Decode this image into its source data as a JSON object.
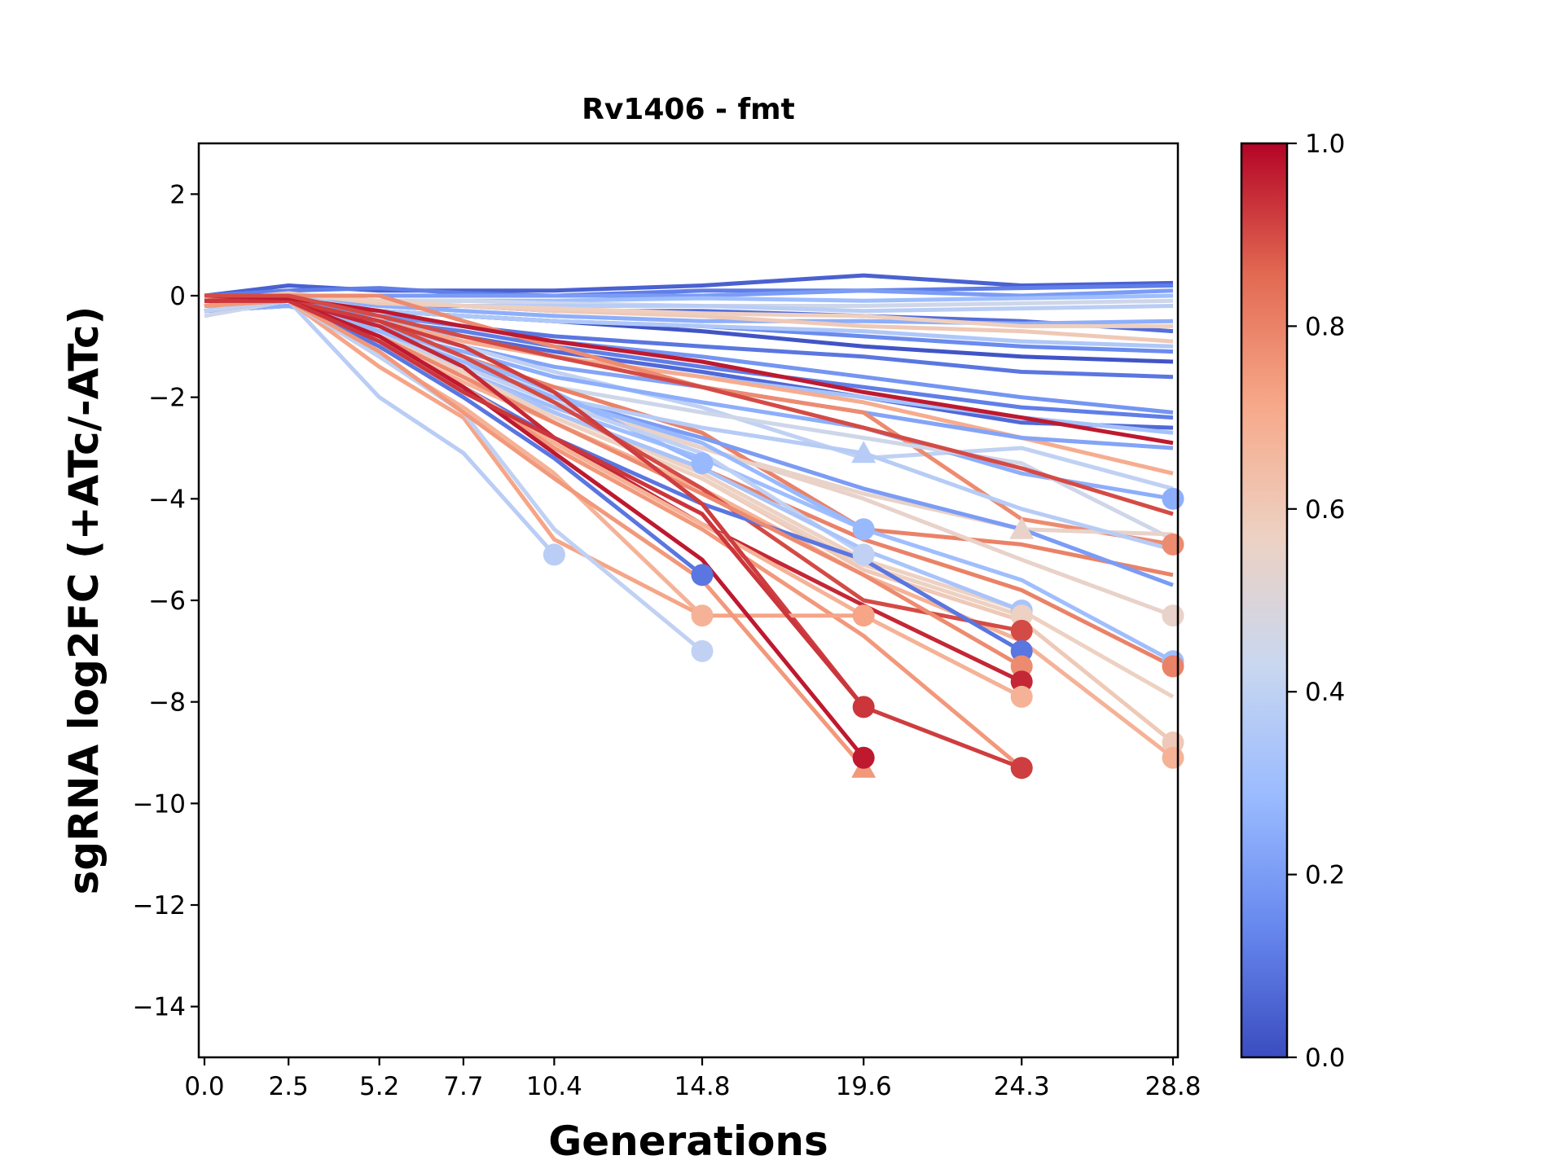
{
  "chart_data": {
    "type": "line",
    "title": "Rv1406 - fmt",
    "xlabel": "Generations",
    "ylabel": "sgRNA log2FC (+ATc/-ATc)",
    "x": [
      0.0,
      2.5,
      5.2,
      7.7,
      10.4,
      14.8,
      19.6,
      24.3,
      28.8
    ],
    "xtick_labels": [
      "0.0",
      "2.5",
      "5.2",
      "7.7",
      "10.4",
      "14.8",
      "19.6",
      "24.3",
      "28.8"
    ],
    "ylim": [
      -15,
      3
    ],
    "yticks": [
      2,
      0,
      -2,
      -4,
      -6,
      -8,
      -10,
      -12,
      -14
    ],
    "ytick_labels": [
      "2",
      "0",
      "−2",
      "−4",
      "−6",
      "−8",
      "−10",
      "−12",
      "−14"
    ],
    "grid": false,
    "colorbar": {
      "colormap": "coolwarm",
      "range": [
        0.0,
        1.0
      ],
      "tick_labels": [
        "0.0",
        "0.2",
        "0.4",
        "0.6",
        "0.8",
        "1.0"
      ],
      "stops": [
        "#3b4cc0",
        "#6788ee",
        "#9abbff",
        "#c9d7f0",
        "#edd1c2",
        "#f7a889",
        "#e26952",
        "#b40426"
      ]
    },
    "series": [
      {
        "c": 0.05,
        "values": [
          0.0,
          0.2,
          0.1,
          0.1,
          0.1,
          0.2,
          0.4,
          0.2,
          0.25
        ]
      },
      {
        "c": 0.12,
        "values": [
          0.0,
          0.1,
          0.15,
          0.05,
          0.0,
          0.1,
          0.1,
          0.15,
          0.2
        ]
      },
      {
        "c": 0.2,
        "values": [
          0.0,
          0.0,
          0.0,
          0.0,
          0.0,
          0.0,
          0.1,
          0.0,
          0.1
        ]
      },
      {
        "c": 0.3,
        "values": [
          -0.1,
          0.0,
          -0.1,
          -0.1,
          -0.1,
          -0.05,
          -0.1,
          -0.05,
          0.0
        ]
      },
      {
        "c": 0.45,
        "values": [
          -0.1,
          0.0,
          -0.1,
          -0.1,
          -0.15,
          -0.2,
          -0.2,
          -0.15,
          -0.1
        ]
      },
      {
        "c": 0.38,
        "values": [
          -0.2,
          0.0,
          -0.15,
          -0.2,
          -0.2,
          -0.2,
          -0.3,
          -0.25,
          -0.2
        ]
      },
      {
        "c": 0.08,
        "values": [
          -0.1,
          0.0,
          -0.2,
          -0.2,
          -0.3,
          -0.3,
          -0.4,
          -0.5,
          -0.7
        ]
      },
      {
        "c": 0.25,
        "values": [
          -0.2,
          0.0,
          -0.2,
          -0.3,
          -0.4,
          -0.5,
          -0.5,
          -0.55,
          -0.5
        ]
      },
      {
        "c": 0.6,
        "values": [
          -0.1,
          0.05,
          -0.15,
          -0.2,
          -0.3,
          -0.4,
          -0.6,
          -0.7,
          -0.9
        ]
      },
      {
        "c": 0.58,
        "values": [
          -0.1,
          0.0,
          -0.1,
          -0.2,
          -0.25,
          -0.35,
          -0.4,
          -0.6,
          -0.6
        ]
      },
      {
        "c": 0.02,
        "values": [
          -0.2,
          -0.1,
          -0.3,
          -0.4,
          -0.5,
          -0.7,
          -1.0,
          -1.2,
          -1.3
        ]
      },
      {
        "c": 0.15,
        "values": [
          -0.2,
          -0.1,
          -0.3,
          -0.4,
          -0.5,
          -0.6,
          -0.8,
          -1.0,
          -1.1
        ]
      },
      {
        "c": 0.35,
        "values": [
          -0.3,
          0.0,
          -0.3,
          -0.4,
          -0.5,
          -0.6,
          -0.7,
          -0.9,
          -1.0
        ]
      },
      {
        "c": 0.1,
        "values": [
          -0.3,
          -0.1,
          -0.4,
          -0.6,
          -0.8,
          -1.0,
          -1.2,
          -1.5,
          -1.6
        ]
      },
      {
        "c": 0.18,
        "values": [
          -0.2,
          -0.1,
          -0.4,
          -0.6,
          -0.9,
          -1.2,
          -1.6,
          -2.0,
          -2.3
        ]
      },
      {
        "c": 0.12,
        "values": [
          -0.3,
          -0.1,
          -0.5,
          -0.7,
          -1.0,
          -1.4,
          -1.8,
          -2.2,
          -2.4
        ]
      },
      {
        "c": 0.07,
        "values": [
          -0.3,
          -0.2,
          -0.5,
          -0.8,
          -1.1,
          -1.5,
          -2.0,
          -2.5,
          -2.6
        ]
      },
      {
        "c": 0.32,
        "values": [
          -0.2,
          -0.1,
          -0.5,
          -0.8,
          -1.2,
          -1.6,
          -2.0,
          -2.4,
          -2.7
        ]
      },
      {
        "c": 0.7,
        "values": [
          -0.2,
          -0.1,
          -0.5,
          -0.9,
          -1.2,
          -1.6,
          -2.1,
          -2.8,
          -3.5
        ]
      },
      {
        "c": 0.22,
        "values": [
          -0.3,
          -0.2,
          -0.6,
          -1.0,
          -1.4,
          -1.8,
          -2.3,
          -2.8,
          -3.0
        ]
      },
      {
        "c": 0.4,
        "values": [
          -0.3,
          -0.1,
          -0.6,
          -1.0,
          -1.5,
          -2.2,
          -3.2,
          -3.0,
          -3.8
        ]
      },
      {
        "c": 0.25,
        "values": [
          -0.3,
          -0.2,
          -0.7,
          -1.1,
          -1.6,
          -2.1,
          -2.6,
          -3.5,
          -4.0
        ],
        "marker": "o"
      },
      {
        "c": 0.78,
        "values": [
          -0.1,
          0.0,
          0.0,
          -0.5,
          -1.0,
          -1.8,
          -2.3,
          -4.4,
          -4.9
        ],
        "marker": "o"
      },
      {
        "c": 0.45,
        "values": [
          -0.4,
          -0.1,
          -0.8,
          -1.3,
          -1.8,
          -2.3,
          -2.8,
          -3.3,
          -4.8
        ]
      },
      {
        "c": 0.55,
        "values": [
          -0.3,
          -0.1,
          -0.8,
          -1.4,
          -2.0,
          -3.0,
          -3.9,
          -4.6,
          -4.7
        ],
        "marker_at": 7,
        "marker_shape": "^"
      },
      {
        "c": 0.8,
        "values": [
          -0.2,
          -0.1,
          -0.6,
          -1.2,
          -1.8,
          -2.7,
          -4.6,
          -4.9,
          -5.5
        ]
      },
      {
        "c": 0.2,
        "values": [
          -0.3,
          -0.1,
          -0.8,
          -1.4,
          -2.0,
          -2.8,
          -3.8,
          -4.6,
          -5.7
        ]
      },
      {
        "c": 0.37,
        "values": [
          -0.3,
          -0.1,
          -0.7,
          -1.3,
          -2.0,
          -2.6,
          -3.1,
          -4.2,
          -5.0
        ],
        "marker_at": 6,
        "marker_shape": "^"
      },
      {
        "c": 0.55,
        "values": [
          -0.3,
          -0.1,
          -0.8,
          -1.4,
          -2.1,
          -3.0,
          -4.0,
          -5.2,
          -6.3
        ],
        "marker": "o"
      },
      {
        "c": 0.3,
        "values": [
          -0.3,
          -0.1,
          -0.8,
          -1.5,
          -2.2,
          -3.2,
          -4.6,
          -5.6,
          -7.2
        ],
        "marker": "o"
      },
      {
        "c": 0.8,
        "values": [
          -0.3,
          -0.1,
          -0.8,
          -1.5,
          -2.3,
          -3.4,
          -4.8,
          -5.8,
          -7.3
        ],
        "marker": "o"
      },
      {
        "c": 0.57,
        "values": [
          -0.3,
          -0.1,
          -0.8,
          -1.5,
          -2.3,
          -3.5,
          -5.2,
          -6.2,
          -7.9
        ]
      },
      {
        "c": 0.6,
        "values": [
          -0.2,
          -0.1,
          -0.8,
          -1.6,
          -2.4,
          -3.6,
          -5.4,
          -6.4,
          -8.8
        ],
        "marker": "o"
      },
      {
        "c": 0.68,
        "values": [
          -0.2,
          -0.1,
          -0.9,
          -1.7,
          -2.5,
          -3.8,
          -5.5,
          -6.8,
          -9.1
        ],
        "marker": "o"
      },
      {
        "c": 0.28,
        "values": [
          -0.2,
          -0.1,
          -0.6,
          -1.2,
          -1.9,
          -3.3
        ],
        "marker": "o"
      },
      {
        "c": 0.28,
        "values": [
          -0.2,
          -0.1,
          -0.7,
          -1.3,
          -2.0,
          -2.9,
          -4.6
        ],
        "marker": "o"
      },
      {
        "c": 0.4,
        "values": [
          -0.3,
          -0.1,
          -0.8,
          -1.4,
          -2.1,
          -3.1,
          -5.1
        ],
        "marker": "o"
      },
      {
        "c": 0.33,
        "values": [
          -0.2,
          -0.1,
          -0.8,
          -1.5,
          -2.3,
          -3.4,
          -5.0,
          -6.2
        ],
        "marker": "o"
      },
      {
        "c": 0.57,
        "values": [
          -0.2,
          -0.1,
          -0.8,
          -1.5,
          -2.4,
          -3.6,
          -5.3,
          -6.3
        ],
        "marker": "o"
      },
      {
        "c": 0.9,
        "values": [
          -0.1,
          -0.1,
          -0.5,
          -1.2,
          -2.1,
          -3.8,
          -6.0,
          -6.6
        ],
        "marker": "o"
      },
      {
        "c": 0.1,
        "values": [
          -0.2,
          -0.1,
          -0.9,
          -1.8,
          -2.8,
          -4.1,
          -5.2,
          -7.0
        ],
        "marker": "o"
      },
      {
        "c": 0.78,
        "values": [
          -0.2,
          -0.1,
          -0.8,
          -1.6,
          -2.5,
          -3.9,
          -5.5,
          -7.3
        ],
        "marker": "o"
      },
      {
        "c": 0.95,
        "values": [
          -0.1,
          -0.1,
          -0.6,
          -1.4,
          -2.8,
          -4.5,
          -6.1,
          -7.6
        ],
        "marker": "o"
      },
      {
        "c": 0.68,
        "values": [
          -0.2,
          -0.1,
          -0.9,
          -1.8,
          -2.9,
          -4.5,
          -6.3,
          -7.9
        ],
        "marker": "o"
      },
      {
        "c": 0.75,
        "values": [
          -0.2,
          -0.1,
          -0.9,
          -1.8,
          -3.0,
          -4.6,
          -6.7,
          -9.3
        ],
        "marker": "o"
      },
      {
        "c": 0.92,
        "values": [
          -0.1,
          -0.1,
          -0.5,
          -1.0,
          -1.9,
          -4.1,
          -8.1,
          -9.3
        ],
        "marker": "o"
      },
      {
        "c": 0.38,
        "values": [
          -0.3,
          -0.1,
          -2.0,
          -3.1,
          -5.1
        ],
        "marker": "o"
      },
      {
        "c": 0.1,
        "values": [
          -0.3,
          -0.1,
          -1.0,
          -2.0,
          -3.2,
          -5.5
        ],
        "marker": "o"
      },
      {
        "c": 0.68,
        "values": [
          -0.2,
          -0.1,
          -1.2,
          -2.2,
          -3.5,
          -6.3
        ],
        "marker": "o"
      },
      {
        "c": 0.72,
        "values": [
          -0.2,
          -0.1,
          -1.4,
          -2.4,
          -4.8,
          -6.3,
          -6.3
        ],
        "marker": "o"
      },
      {
        "c": 0.4,
        "values": [
          -0.3,
          -0.1,
          -1.2,
          -2.3,
          -4.6,
          -7.0
        ],
        "marker": "o"
      },
      {
        "c": 0.75,
        "values": [
          -0.2,
          -0.1,
          -1.1,
          -2.3,
          -3.6,
          -5.6,
          -9.3
        ],
        "marker": "^"
      },
      {
        "c": 0.97,
        "values": [
          -0.1,
          -0.1,
          -0.8,
          -1.8,
          -3.1,
          -5.2,
          -9.1
        ],
        "marker": "o"
      },
      {
        "c": 0.93,
        "values": [
          -0.1,
          -0.1,
          -0.9,
          -1.9,
          -2.8,
          -4.3,
          -8.1
        ],
        "marker": "o"
      },
      {
        "c": 0.97,
        "values": [
          0.0,
          -0.05,
          -0.3,
          -0.6,
          -0.9,
          -1.3,
          -1.9,
          -2.4,
          -2.9
        ]
      },
      {
        "c": 0.9,
        "values": [
          0.0,
          0.0,
          -0.4,
          -0.8,
          -1.2,
          -1.8,
          -2.6,
          -3.4,
          -4.3
        ]
      }
    ]
  }
}
